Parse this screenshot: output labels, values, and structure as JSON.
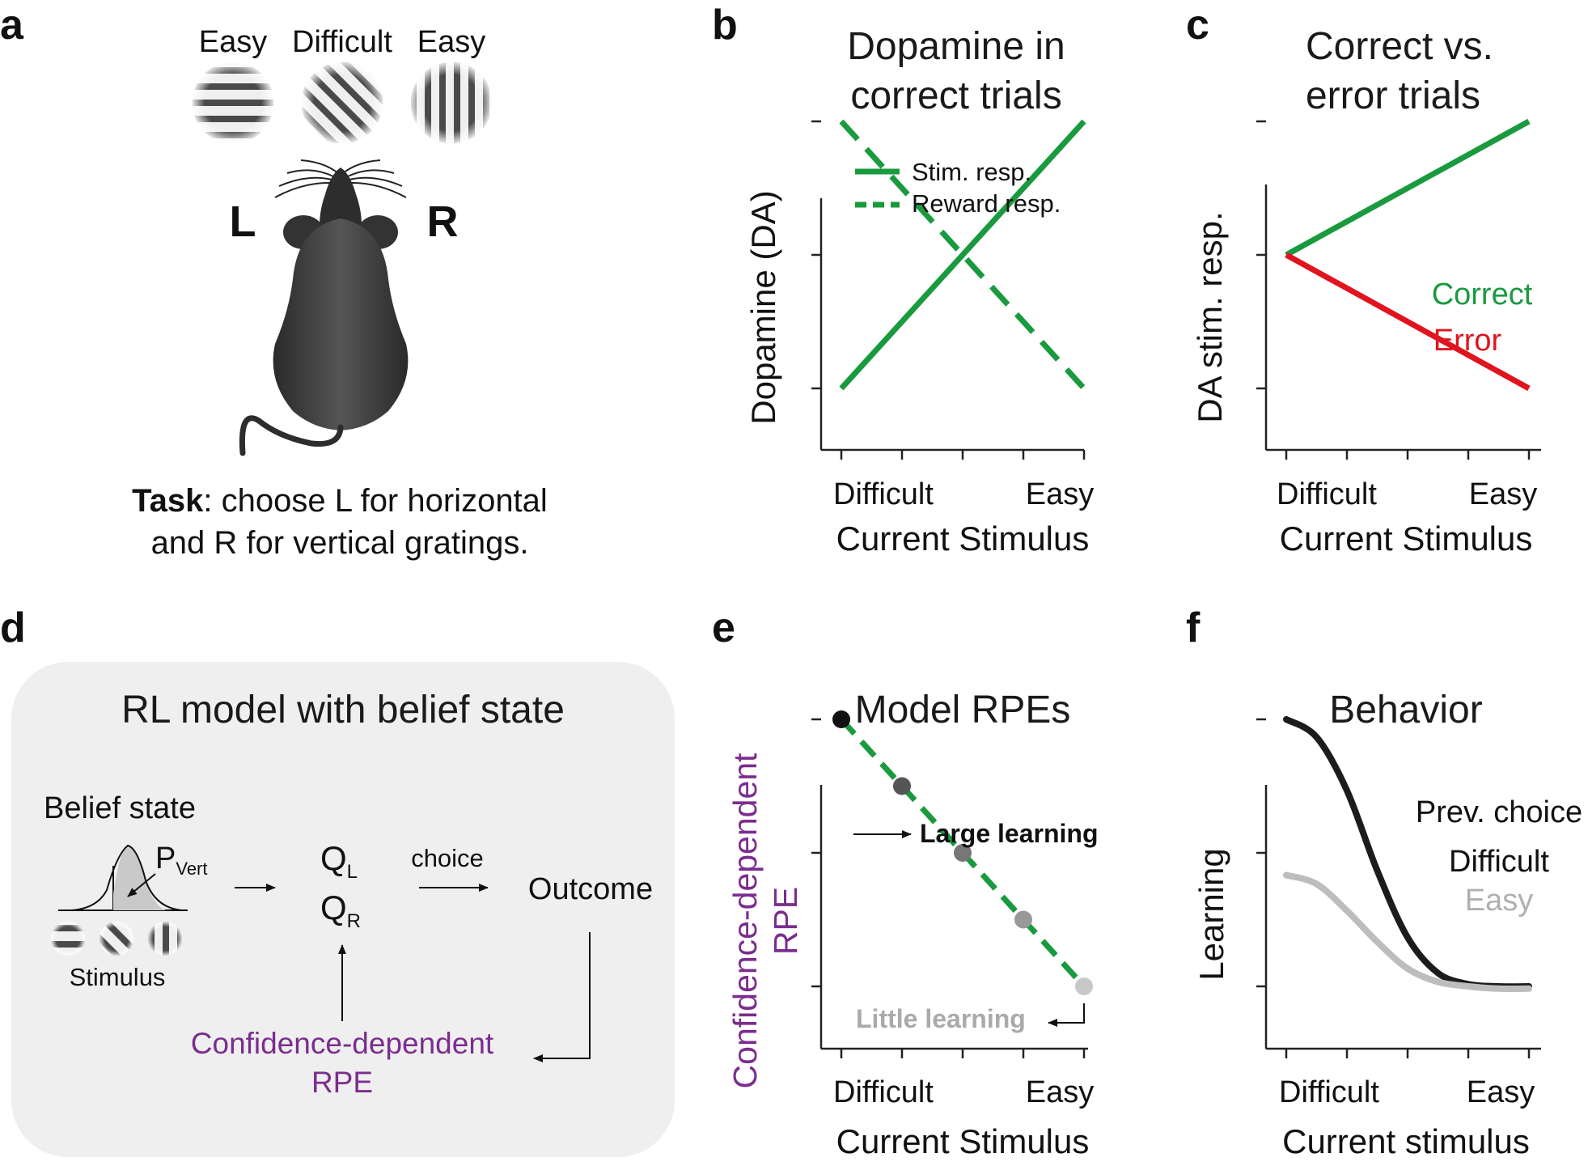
{
  "panel_labels": {
    "a": "a",
    "b": "b",
    "c": "c",
    "d": "d",
    "e": "e",
    "f": "f"
  },
  "panel_a": {
    "grating_labels": [
      "Easy",
      "Difficult",
      "Easy"
    ],
    "left_label": "L",
    "right_label": "R",
    "task_bold": "Task",
    "task_rest": ": choose L for horizontal",
    "task_line2": "and R for vertical gratings."
  },
  "panel_d": {
    "title": "RL model with belief state",
    "belief_label": "Belief state",
    "p_main": "P",
    "p_sub": "Vert",
    "stimulus_label": "Stimulus",
    "q_main": "Q",
    "q_sub_l": "L",
    "q_sub_r": "R",
    "choice_label": "choice",
    "outcome_label": "Outcome",
    "rpe_line1": "Confidence-dependent",
    "rpe_line2": "RPE",
    "rpe_color": "#7b2d8e"
  },
  "colors": {
    "green": "#1a9a3f",
    "red": "#e0141e",
    "purple": "#7b2d8e",
    "dark": "#1c1c1c",
    "grey": "#bdbdbd"
  },
  "chart_data": [
    {
      "panel": "b",
      "type": "line",
      "title": [
        "Dopamine in",
        "correct trials"
      ],
      "xlabel": "Current Stimulus",
      "ylabel": "Dopamine (DA)",
      "x_tick_labels": [
        "Difficult",
        "Easy"
      ],
      "x": [
        0,
        1
      ],
      "ylim": [
        0,
        1
      ],
      "legend_position": "top",
      "series": [
        {
          "name": "Stim. resp.",
          "style": "solid",
          "color": "#1a9a3f",
          "values": [
            0.2,
            0.8
          ]
        },
        {
          "name": "Reward resp.",
          "style": "dashed",
          "color": "#1a9a3f",
          "values": [
            0.8,
            0.2
          ]
        }
      ]
    },
    {
      "panel": "c",
      "type": "line",
      "title": [
        "Correct vs.",
        "error trials"
      ],
      "xlabel": "Current Stimulus",
      "ylabel": "DA stim. resp.",
      "x_tick_labels": [
        "Difficult",
        "Easy"
      ],
      "x": [
        0,
        1
      ],
      "ylim": [
        0,
        1
      ],
      "series": [
        {
          "name": "Correct",
          "style": "solid",
          "color": "#1a9a3f",
          "values": [
            0.5,
            0.8
          ]
        },
        {
          "name": "Error",
          "style": "solid",
          "color": "#e0141e",
          "values": [
            0.5,
            0.2
          ]
        }
      ]
    },
    {
      "panel": "e",
      "type": "line",
      "title": [
        "Model RPEs"
      ],
      "xlabel": "Current Stimulus",
      "ylabel_lines": [
        "Confidence-dependent",
        "RPE"
      ],
      "x_tick_labels": [
        "Difficult",
        "Easy"
      ],
      "x": [
        0,
        0.25,
        0.5,
        0.75,
        1
      ],
      "ylim": [
        0,
        1
      ],
      "series": [
        {
          "style": "dashed",
          "color": "#1a9a3f",
          "values": [
            0.8,
            0.65,
            0.5,
            0.35,
            0.2
          ],
          "point_colors": [
            "#111111",
            "#555555",
            "#777777",
            "#999999",
            "#c8c8c8"
          ]
        }
      ],
      "annotations": [
        {
          "text": "Large learning",
          "color": "#111111",
          "points_to_x": 0
        },
        {
          "text": "Little learning",
          "color": "#aaaaaa",
          "points_to_x": 1
        }
      ]
    },
    {
      "panel": "f",
      "type": "line",
      "title": [
        "Behavior"
      ],
      "xlabel": "Current stimulus",
      "ylabel": "Learning",
      "x_tick_labels": [
        "Difficult",
        "Easy"
      ],
      "x": [
        0,
        0.125,
        0.25,
        0.375,
        0.5,
        0.625,
        0.75,
        0.875,
        1
      ],
      "ylim": [
        0,
        1
      ],
      "legend_title": "Prev. choice",
      "series": [
        {
          "name": "Difficult",
          "color": "#1c1c1c",
          "values": [
            0.8,
            0.76,
            0.64,
            0.46,
            0.31,
            0.23,
            0.205,
            0.2,
            0.2
          ]
        },
        {
          "name": "Easy",
          "color": "#bdbdbd",
          "values": [
            0.45,
            0.43,
            0.37,
            0.3,
            0.24,
            0.21,
            0.2,
            0.195,
            0.195
          ]
        }
      ]
    }
  ]
}
